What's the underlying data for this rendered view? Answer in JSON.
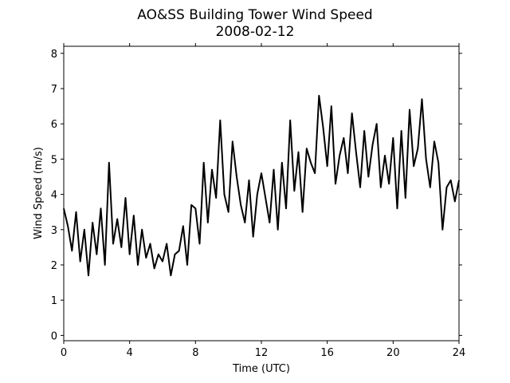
{
  "chart_data": {
    "type": "line",
    "title": "AO&SS Building Tower Wind Speed",
    "subtitle": "2008-02-12",
    "xlabel": "Time (UTC)",
    "ylabel": "Wind Speed (m/s)",
    "xlim": [
      0,
      24
    ],
    "ylim": [
      -0.15,
      8.2
    ],
    "xticks": [
      0,
      4,
      8,
      12,
      16,
      20,
      24
    ],
    "yticks": [
      0,
      1,
      2,
      3,
      4,
      5,
      6,
      7,
      8
    ],
    "grid": false,
    "legend": "none",
    "series": [
      {
        "color": "#000000",
        "x": [
          0.0,
          0.25,
          0.5,
          0.75,
          1.0,
          1.25,
          1.5,
          1.75,
          2.0,
          2.25,
          2.5,
          2.75,
          3.0,
          3.25,
          3.5,
          3.75,
          4.0,
          4.25,
          4.5,
          4.75,
          5.0,
          5.25,
          5.5,
          5.75,
          6.0,
          6.25,
          6.5,
          6.75,
          7.0,
          7.25,
          7.5,
          7.75,
          8.0,
          8.25,
          8.5,
          8.75,
          9.0,
          9.25,
          9.5,
          9.75,
          10.0,
          10.25,
          10.5,
          10.75,
          11.0,
          11.25,
          11.5,
          11.75,
          12.0,
          12.25,
          12.5,
          12.75,
          13.0,
          13.25,
          13.5,
          13.75,
          14.0,
          14.25,
          14.5,
          14.75,
          15.0,
          15.25,
          15.5,
          15.75,
          16.0,
          16.25,
          16.5,
          16.75,
          17.0,
          17.25,
          17.5,
          17.75,
          18.0,
          18.25,
          18.5,
          18.75,
          19.0,
          19.25,
          19.5,
          19.75,
          20.0,
          20.25,
          20.5,
          20.75,
          21.0,
          21.25,
          21.5,
          21.75,
          22.0,
          22.25,
          22.5,
          22.75,
          23.0,
          23.25,
          23.5,
          23.75,
          24.0
        ],
        "y": [
          3.6,
          3.1,
          2.4,
          3.5,
          2.1,
          3.0,
          1.7,
          3.2,
          2.3,
          3.6,
          2.0,
          4.9,
          2.6,
          3.3,
          2.5,
          3.9,
          2.3,
          3.4,
          2.0,
          3.0,
          2.2,
          2.6,
          1.9,
          2.3,
          2.1,
          2.6,
          1.7,
          2.3,
          2.4,
          3.1,
          2.0,
          3.7,
          3.6,
          2.6,
          4.9,
          3.2,
          4.7,
          3.9,
          6.1,
          4.0,
          3.5,
          5.5,
          4.5,
          3.7,
          3.2,
          4.4,
          2.8,
          4.0,
          4.6,
          3.9,
          3.2,
          4.7,
          3.0,
          4.9,
          3.6,
          6.1,
          4.1,
          5.2,
          3.5,
          5.3,
          4.9,
          4.6,
          6.8,
          5.9,
          4.8,
          6.5,
          4.3,
          5.1,
          5.6,
          4.6,
          6.3,
          5.2,
          4.2,
          5.8,
          4.5,
          5.4,
          6.0,
          4.2,
          5.1,
          4.3,
          5.6,
          3.6,
          5.8,
          3.9,
          6.4,
          4.8,
          5.3,
          6.7,
          5.0,
          4.2,
          5.5,
          4.9,
          3.0,
          4.2,
          4.4,
          3.8,
          4.4
        ]
      }
    ]
  }
}
